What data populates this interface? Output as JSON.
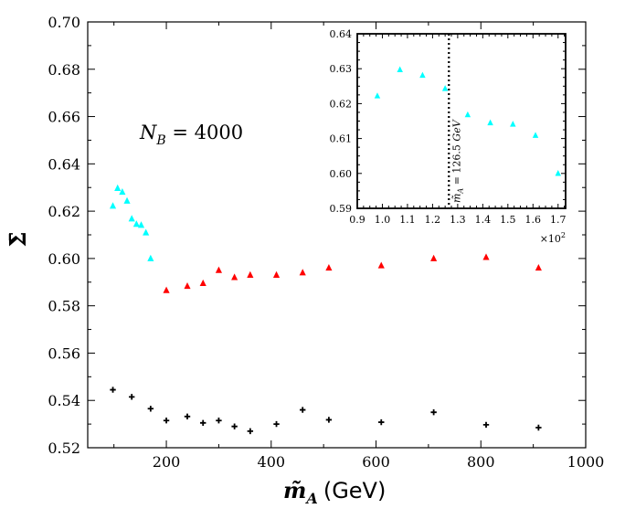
{
  "chart_data": [
    {
      "type": "scatter",
      "title": "",
      "xlabel": "m̃_A (GeV)",
      "xlabel_symbol": "m̃",
      "xlabel_sub": "A",
      "xlabel_unit": "(GeV)",
      "ylabel": "Σ̄",
      "xlim": [
        50,
        1000
      ],
      "ylim": [
        0.52,
        0.7
      ],
      "xticks": [
        200,
        400,
        600,
        800,
        1000
      ],
      "yticks": [
        0.52,
        0.54,
        0.56,
        0.58,
        0.6,
        0.62,
        0.64,
        0.66,
        0.68,
        0.7
      ],
      "annotation": {
        "text_main": "N",
        "text_sub": "B",
        "text_rest": " = 4000"
      },
      "series": [
        {
          "name": "cyan",
          "marker": "triangle",
          "color": "#00ffff",
          "x": [
            98,
            107,
            116,
            125,
            134,
            143,
            152,
            161,
            170
          ],
          "y": [
            0.6222,
            0.6297,
            0.6281,
            0.6243,
            0.6168,
            0.6145,
            0.6141,
            0.6109,
            0.6
          ]
        },
        {
          "name": "red",
          "marker": "triangle",
          "color": "#ff0000",
          "x": [
            200,
            240,
            270,
            300,
            330,
            360,
            410,
            460,
            510,
            610,
            710,
            810,
            910
          ],
          "y": [
            0.5865,
            0.5883,
            0.5895,
            0.595,
            0.592,
            0.593,
            0.593,
            0.594,
            0.596,
            0.597,
            0.6,
            0.6005,
            0.596
          ]
        },
        {
          "name": "black",
          "marker": "plus",
          "color": "#000000",
          "x": [
            98,
            134,
            170,
            200,
            240,
            270,
            300,
            330,
            360,
            410,
            460,
            510,
            610,
            710,
            810,
            910
          ],
          "y": [
            0.5445,
            0.5415,
            0.5365,
            0.5315,
            0.5332,
            0.5305,
            0.5315,
            0.529,
            0.527,
            0.53,
            0.536,
            0.5318,
            0.5308,
            0.535,
            0.5297,
            0.5285
          ]
        }
      ]
    },
    {
      "type": "scatter",
      "title": "",
      "xlabel": "",
      "ylabel": "",
      "xlim": [
        0.9,
        1.73
      ],
      "ylim": [
        0.59,
        0.64
      ],
      "xticks": [
        0.9,
        1.0,
        1.1,
        1.2,
        1.3,
        1.4,
        1.5,
        1.6,
        1.7
      ],
      "xtick_labels": [
        "0.9",
        "1.0",
        "1.1",
        "1.2",
        "1.3",
        "1.4",
        "1.5",
        "1.6",
        "1.7"
      ],
      "yticks": [
        0.59,
        0.6,
        0.61,
        0.62,
        0.63,
        0.64
      ],
      "ytick_labels": [
        "0.59",
        "0.60",
        "0.61",
        "0.62",
        "0.63",
        "0.64"
      ],
      "x_offset_base": "×10",
      "x_offset_exp": "2",
      "vline": {
        "x": 1.265,
        "label": "m̃_A = 126.5 GeV",
        "label_main": "m̃",
        "label_sub": "A",
        "label_rest": " = 126.5 ",
        "label_unit": "GeV"
      },
      "series": [
        {
          "name": "cyan",
          "marker": "triangle",
          "color": "#00ffff",
          "x": [
            0.98,
            1.07,
            1.16,
            1.25,
            1.34,
            1.43,
            1.52,
            1.61,
            1.7
          ],
          "y": [
            0.6222,
            0.6297,
            0.6281,
            0.6243,
            0.6168,
            0.6145,
            0.6141,
            0.6109,
            0.6
          ]
        }
      ]
    }
  ]
}
